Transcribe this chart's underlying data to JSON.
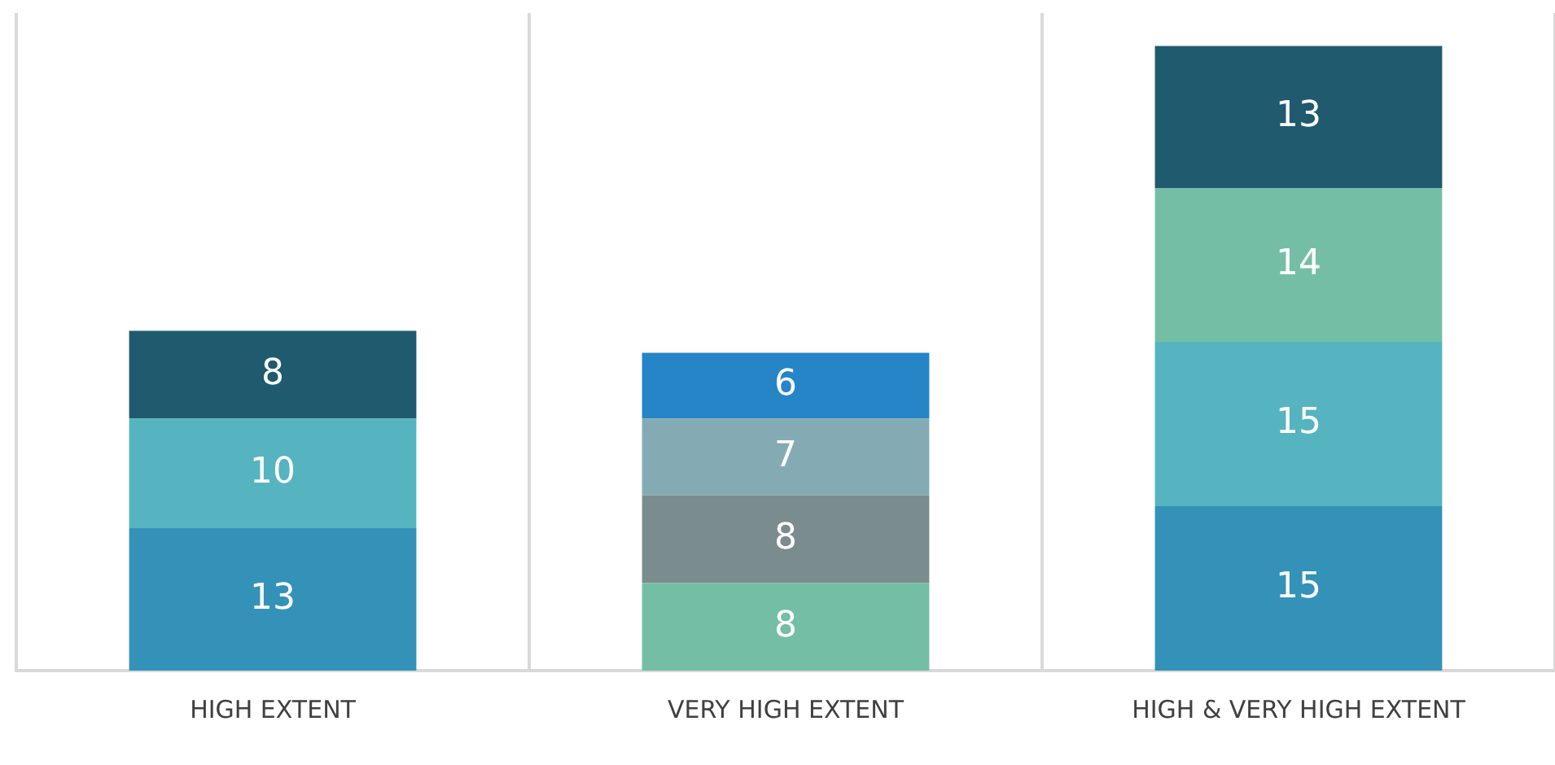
{
  "chart_data": {
    "type": "bar",
    "stacked": true,
    "data_labels": true,
    "grid": "x",
    "legend": false,
    "categories": [
      "HIGH EXTENT",
      "VERY HIGH EXTENT",
      "HIGH & VERY HIGH EXTENT"
    ],
    "series": [
      {
        "colors": [
          "#3492b8",
          "#74bea6",
          "#3492b8"
        ],
        "values": [
          13,
          8,
          15
        ]
      },
      {
        "colors": [
          "#55b4bf",
          "#7a8c8e",
          "#55b4bf"
        ],
        "values": [
          10,
          8,
          15
        ]
      },
      {
        "colors": [
          "#1f5a6e",
          "#84abb4",
          "#74bea6"
        ],
        "values": [
          8,
          7,
          14
        ]
      },
      {
        "colors": [
          "#1f5a6e",
          "#2585c6",
          "#1f5a6e"
        ],
        "values": [
          null,
          6,
          13
        ]
      }
    ]
  }
}
